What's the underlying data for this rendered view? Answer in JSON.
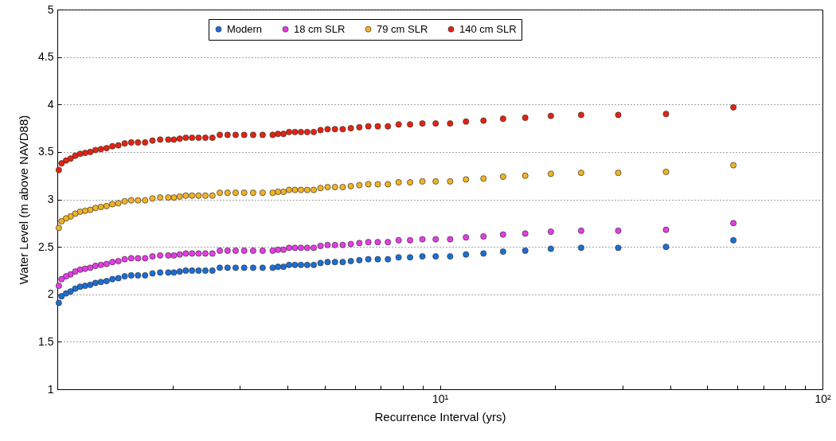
{
  "chart_data": {
    "type": "scatter",
    "xlabel": "Recurrence Interval (yrs)",
    "ylabel": "Water Level (m above NAVD88)",
    "log": "x",
    "grid": "y",
    "legend": "top",
    "marker": "circle",
    "xlim": [
      1,
      100
    ],
    "ylim": [
      1,
      5
    ],
    "xticks": [
      {
        "value": 2,
        "label": null
      },
      {
        "value": 3,
        "label": null
      },
      {
        "value": 4,
        "label": null
      },
      {
        "value": 5,
        "label": null
      },
      {
        "value": 6,
        "label": null
      },
      {
        "value": 7,
        "label": null
      },
      {
        "value": 8,
        "label": null
      },
      {
        "value": 9,
        "label": null
      },
      {
        "value": 10,
        "label": "10¹"
      },
      {
        "value": 20,
        "label": null
      },
      {
        "value": 30,
        "label": null
      },
      {
        "value": 40,
        "label": null
      },
      {
        "value": 50,
        "label": null
      },
      {
        "value": 60,
        "label": null
      },
      {
        "value": 70,
        "label": null
      },
      {
        "value": 80,
        "label": null
      },
      {
        "value": 90,
        "label": null
      },
      {
        "value": 100,
        "label": "10²"
      }
    ],
    "yticks": [
      1,
      1.5,
      2,
      2.5,
      3,
      3.5,
      4,
      4.5,
      5
    ],
    "x": [
      58.5,
      39,
      29.25,
      23.4,
      19.5,
      16.714,
      14.625,
      13,
      11.7,
      10.636,
      9.75,
      9,
      8.357,
      7.8,
      7.313,
      6.882,
      6.5,
      6.158,
      5.85,
      5.571,
      5.318,
      5.087,
      4.875,
      4.68,
      4.5,
      4.333,
      4.179,
      4.034,
      3.9,
      3.774,
      3.656,
      3.441,
      3.25,
      3.079,
      2.925,
      2.786,
      2.659,
      2.543,
      2.438,
      2.34,
      2.25,
      2.167,
      2.089,
      2.017,
      1.95,
      1.857,
      1.773,
      1.696,
      1.625,
      1.56,
      1.5,
      1.444,
      1.393,
      1.345,
      1.3,
      1.258,
      1.219,
      1.182,
      1.147,
      1.114,
      1.083,
      1.054,
      1.026,
      1.009
    ],
    "series": [
      {
        "name": "Modern",
        "color": "#1a6fd6",
        "values": [
          2.57,
          2.5,
          2.49,
          2.49,
          2.48,
          2.46,
          2.45,
          2.43,
          2.42,
          2.4,
          2.4,
          2.4,
          2.39,
          2.39,
          2.37,
          2.37,
          2.37,
          2.36,
          2.35,
          2.34,
          2.34,
          2.34,
          2.33,
          2.31,
          2.31,
          2.31,
          2.31,
          2.31,
          2.29,
          2.29,
          2.28,
          2.28,
          2.28,
          2.28,
          2.28,
          2.28,
          2.28,
          2.25,
          2.25,
          2.25,
          2.25,
          2.25,
          2.24,
          2.23,
          2.23,
          2.23,
          2.22,
          2.2,
          2.2,
          2.2,
          2.19,
          2.17,
          2.16,
          2.14,
          2.13,
          2.12,
          2.1,
          2.09,
          2.08,
          2.06,
          2.03,
          2.01,
          1.98,
          1.91
        ]
      },
      {
        "name": "18 cm SLR",
        "color": "#e83ce6",
        "values": [
          2.75,
          2.68,
          2.67,
          2.67,
          2.66,
          2.64,
          2.63,
          2.61,
          2.6,
          2.58,
          2.58,
          2.58,
          2.57,
          2.57,
          2.55,
          2.55,
          2.55,
          2.54,
          2.53,
          2.52,
          2.52,
          2.52,
          2.51,
          2.49,
          2.49,
          2.49,
          2.49,
          2.49,
          2.47,
          2.47,
          2.46,
          2.46,
          2.46,
          2.46,
          2.46,
          2.46,
          2.46,
          2.43,
          2.43,
          2.43,
          2.43,
          2.43,
          2.42,
          2.41,
          2.41,
          2.41,
          2.4,
          2.38,
          2.38,
          2.38,
          2.37,
          2.35,
          2.34,
          2.32,
          2.31,
          2.3,
          2.28,
          2.27,
          2.26,
          2.24,
          2.21,
          2.19,
          2.16,
          2.09
        ]
      },
      {
        "name": "79 cm SLR",
        "color": "#f2b324",
        "values": [
          3.36,
          3.29,
          3.28,
          3.28,
          3.27,
          3.25,
          3.24,
          3.22,
          3.21,
          3.19,
          3.19,
          3.19,
          3.18,
          3.18,
          3.16,
          3.16,
          3.16,
          3.15,
          3.14,
          3.13,
          3.13,
          3.13,
          3.12,
          3.1,
          3.1,
          3.1,
          3.1,
          3.1,
          3.08,
          3.08,
          3.07,
          3.07,
          3.07,
          3.07,
          3.07,
          3.07,
          3.07,
          3.04,
          3.04,
          3.04,
          3.04,
          3.04,
          3.03,
          3.02,
          3.02,
          3.02,
          3.01,
          2.99,
          2.99,
          2.99,
          2.98,
          2.96,
          2.95,
          2.93,
          2.92,
          2.91,
          2.89,
          2.88,
          2.87,
          2.85,
          2.82,
          2.8,
          2.77,
          2.7
        ]
      },
      {
        "name": "140 cm SLR",
        "color": "#e8220f",
        "values": [
          3.97,
          3.9,
          3.89,
          3.89,
          3.88,
          3.86,
          3.85,
          3.83,
          3.82,
          3.8,
          3.8,
          3.8,
          3.79,
          3.79,
          3.77,
          3.77,
          3.77,
          3.76,
          3.75,
          3.74,
          3.74,
          3.74,
          3.73,
          3.71,
          3.71,
          3.71,
          3.71,
          3.71,
          3.69,
          3.69,
          3.68,
          3.68,
          3.68,
          3.68,
          3.68,
          3.68,
          3.68,
          3.65,
          3.65,
          3.65,
          3.65,
          3.65,
          3.64,
          3.63,
          3.63,
          3.63,
          3.62,
          3.6,
          3.6,
          3.6,
          3.59,
          3.57,
          3.56,
          3.54,
          3.53,
          3.52,
          3.5,
          3.49,
          3.48,
          3.46,
          3.43,
          3.41,
          3.38,
          3.31
        ]
      }
    ]
  }
}
